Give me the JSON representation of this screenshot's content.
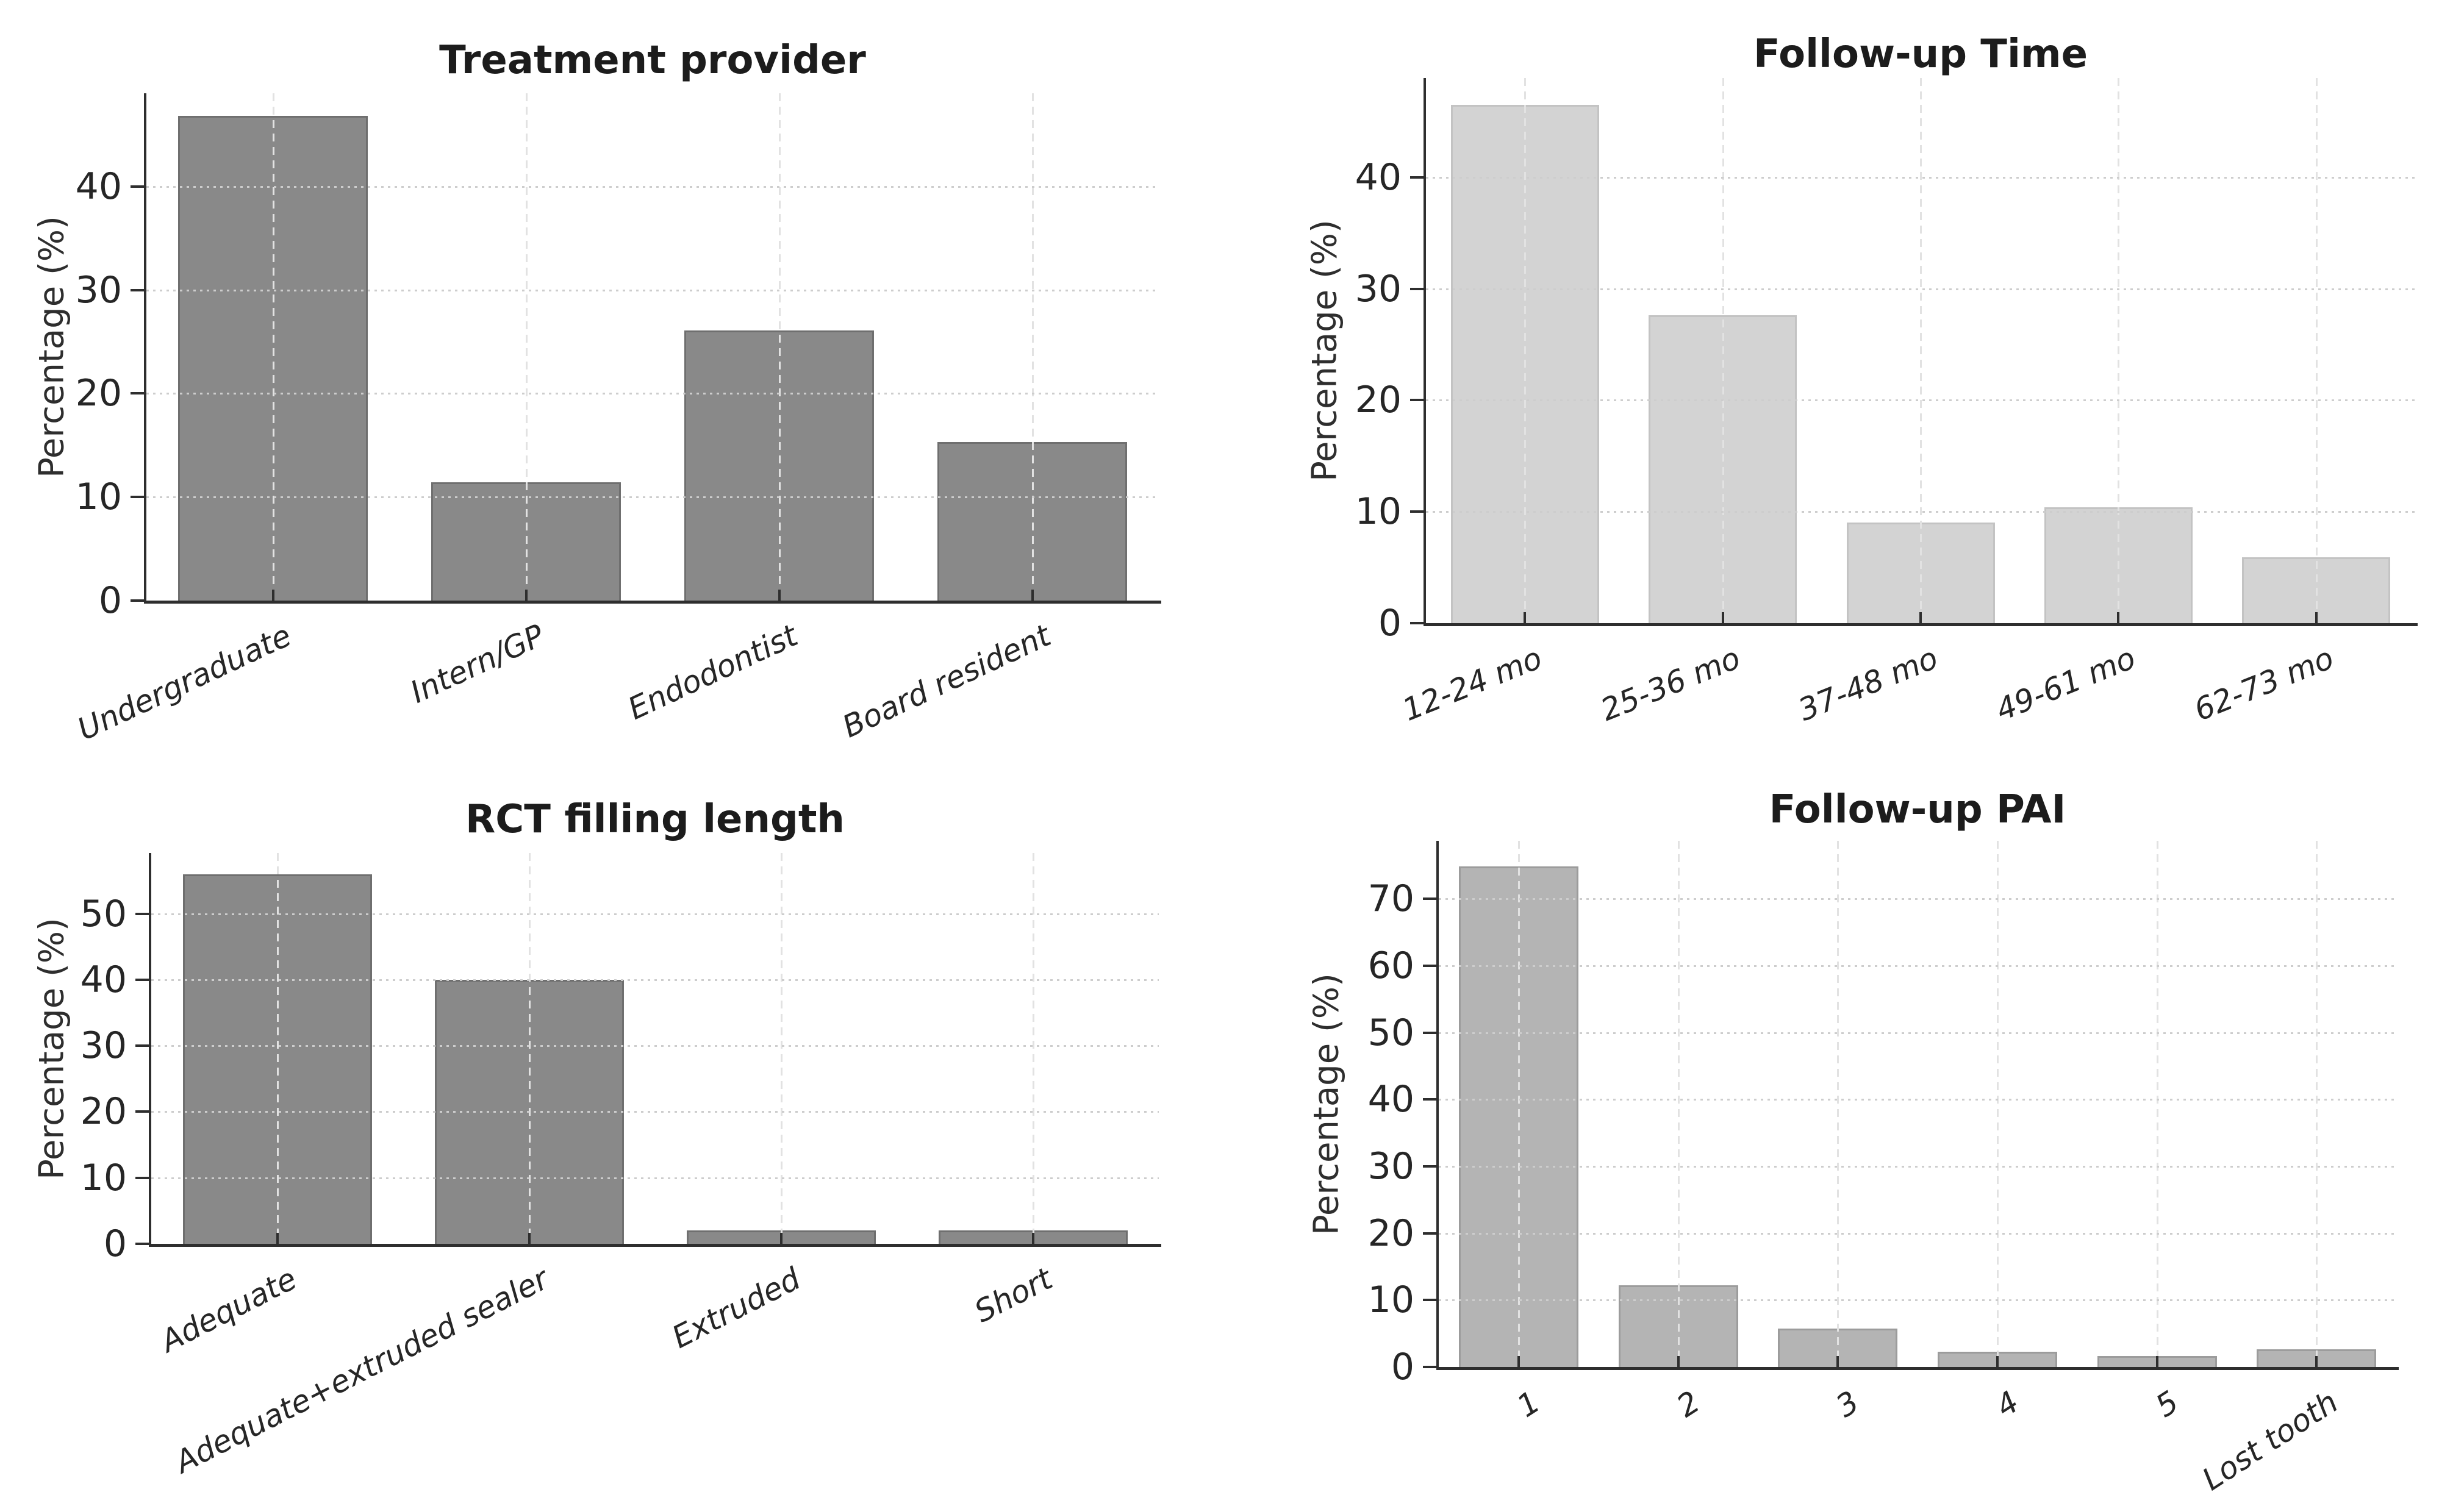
{
  "figure": {
    "background": "#ffffff",
    "axis_color": "#2e2e2e",
    "hgrid_color": "#cdcdcd",
    "vgrid_color": "#e2e2e2",
    "grid": "on",
    "legend": "none"
  },
  "chart_data": [
    {
      "type": "bar",
      "title": "Treatment provider",
      "ylabel": "Percentage (%)",
      "xlabel": "",
      "categories": [
        "Undergraduate",
        "Intern/GP",
        "Endodontist",
        "Board resident"
      ],
      "values": [
        46.8,
        11.4,
        26.1,
        15.3
      ],
      "ylim": [
        0,
        49
      ],
      "yticks": [
        0,
        10,
        20,
        30,
        40
      ],
      "bar_fill": "#898989",
      "bar_edge": "#6f6f6f",
      "xlabel_rotation": 25
    },
    {
      "type": "bar",
      "title": "Follow-up Time",
      "ylabel": "Percentage (%)",
      "xlabel": "",
      "categories": [
        "12-24 mo",
        "25-36 mo",
        "37-48 mo",
        "49-61 mo",
        "62-73 mo"
      ],
      "values": [
        46.5,
        27.6,
        9.0,
        10.4,
        5.9
      ],
      "ylim": [
        0,
        48.9
      ],
      "yticks": [
        0,
        10,
        20,
        30,
        40
      ],
      "bar_fill": "#d3d3d3",
      "bar_edge": "#c3c3c3",
      "xlabel_rotation": 22
    },
    {
      "type": "bar",
      "title": "RCT filling length",
      "ylabel": "Percentage (%)",
      "xlabel": "",
      "categories": [
        "Adequate",
        "Adequate+extruded sealer",
        "Extruded",
        "Short"
      ],
      "values": [
        56.0,
        40.0,
        2.0,
        2.0
      ],
      "ylim": [
        0,
        59.2
      ],
      "yticks": [
        0,
        10,
        20,
        30,
        40,
        50
      ],
      "bar_fill": "#898989",
      "bar_edge": "#6f6f6f",
      "xlabel_rotation": 27
    },
    {
      "type": "bar",
      "title": "Follow-up PAI",
      "ylabel": "Percentage (%)",
      "xlabel": "",
      "categories": [
        "1",
        "2",
        "3",
        "4",
        "5",
        "Lost tooth"
      ],
      "values": [
        74.9,
        12.2,
        5.7,
        2.3,
        1.6,
        2.6
      ],
      "ylim": [
        0,
        78.7
      ],
      "yticks": [
        0,
        10,
        20,
        30,
        40,
        50,
        60,
        70
      ],
      "bar_fill": "#b4b4b4",
      "bar_edge": "#9c9c9c",
      "xlabel_rotation": 33
    }
  ]
}
